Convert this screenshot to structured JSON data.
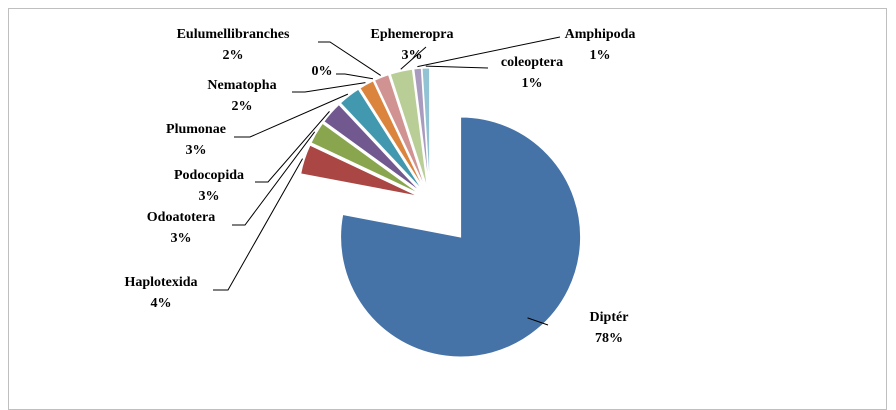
{
  "chart_data": {
    "type": "pie",
    "categories": [
      "Diptér",
      "Haplotexida",
      "Odoatotera",
      "Podocopida",
      "Plumonae",
      "Nematopha",
      null,
      "Eulumellibranches",
      "Ephemeropra",
      "Amphipoda",
      "coleoptera"
    ],
    "values": [
      78,
      4,
      3,
      3,
      3,
      2,
      0,
      2,
      3,
      1,
      1
    ],
    "value_labels": [
      "78%",
      "4%",
      "3%",
      "3%",
      "3%",
      "2%",
      "0%",
      "2%",
      "3%",
      "1%",
      "1%"
    ],
    "colors": [
      "#4572a7",
      "#aa4643",
      "#89a54e",
      "#71588f",
      "#4198af",
      "#db843d",
      "#93a9cf",
      "#d19392",
      "#b9cd96",
      "#a99bbd",
      "#92c3d4"
    ]
  }
}
